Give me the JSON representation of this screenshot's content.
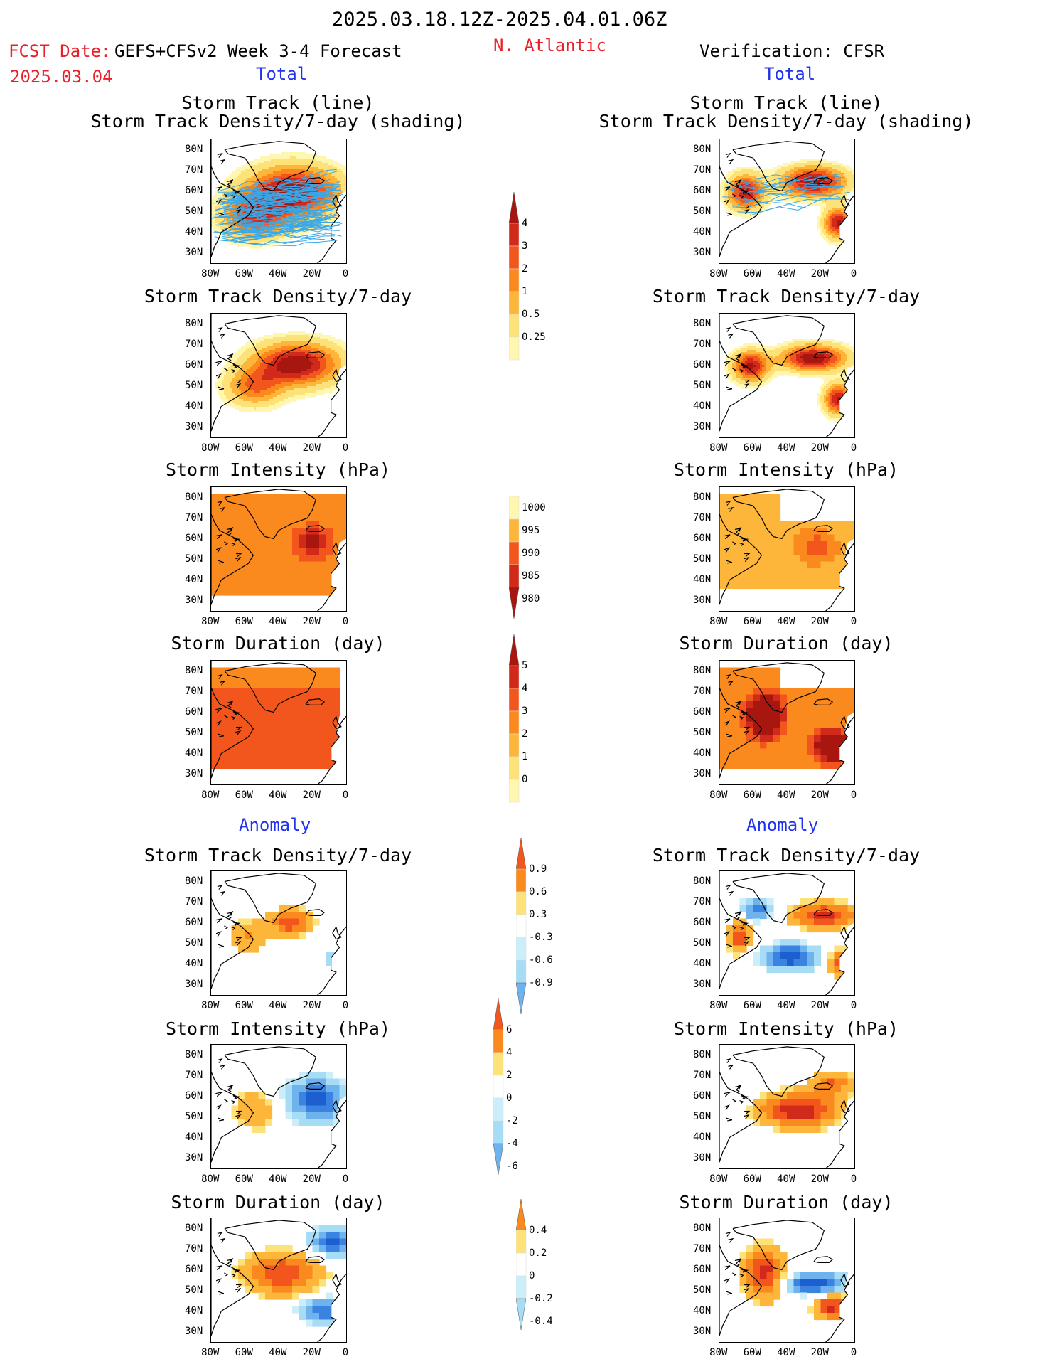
{
  "header": {
    "period": "2025.03.18.12Z-2025.04.01.06Z",
    "fcst_prefix": "FCST Date:",
    "model": "GEFS+CFSv2 Week 3-4 Forecast",
    "fcst_date": "2025.03.04",
    "region": "N. Atlantic",
    "verification": "Verification: CFSR"
  },
  "section_labels": {
    "total": "Total",
    "anomaly": "Anomaly"
  },
  "panel_titles": {
    "track_line": "Storm Track (line)",
    "track_shading": "Storm Track Density/7-day (shading)",
    "density": "Storm Track Density/7-day",
    "intensity": "Storm Intensity (hPa)",
    "duration": "Storm Duration (day)"
  },
  "axes": {
    "lat_ticks": [
      "80N",
      "70N",
      "60N",
      "50N",
      "40N",
      "30N"
    ],
    "lon_ticks": [
      "80W",
      "60W",
      "40W",
      "20W",
      "0"
    ]
  },
  "colorbars": {
    "total_density": [
      "4",
      "3",
      "2",
      "1",
      "0.5",
      "0.25"
    ],
    "total_intensity": [
      "1000",
      "995",
      "990",
      "985",
      "980"
    ],
    "total_duration": [
      "5",
      "4",
      "3",
      "2",
      "1",
      "0"
    ],
    "anom_density": [
      "0.9",
      "0.6",
      "0.3",
      "-0.3",
      "-0.6",
      "-0.9"
    ],
    "anom_intensity": [
      "6",
      "4",
      "2",
      "0",
      "-2",
      "-4",
      "-6"
    ],
    "anom_duration": [
      "0.4",
      "0.2",
      "0",
      "-0.2",
      "-0.4"
    ]
  },
  "colors": {
    "red_text": "#e8202a",
    "blue_text": "#2233ee",
    "track_line": "#3aa8e8",
    "palette_warm": [
      "#fff7b0",
      "#fde27a",
      "#fdb53a",
      "#fb8a1e",
      "#f2561d",
      "#d22a1a",
      "#a8170f"
    ],
    "palette_cool": [
      "#cceefb",
      "#a6dcf6",
      "#6fb3ee",
      "#3a83e0",
      "#1e5fd0"
    ]
  }
}
